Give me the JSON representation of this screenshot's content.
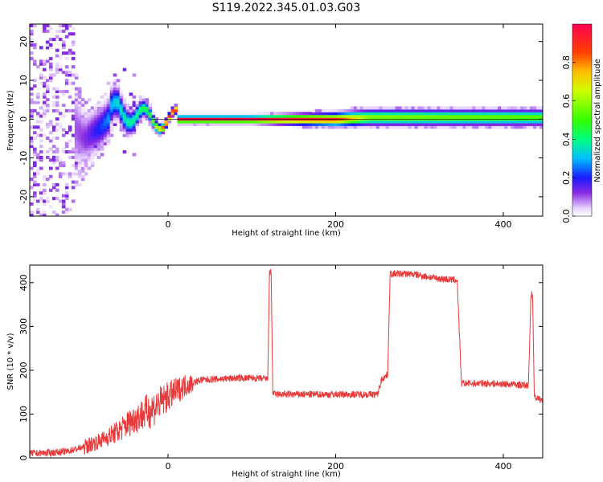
{
  "title": "S119.2022.345.01.03.G03",
  "chart_data": [
    {
      "type": "heatmap",
      "xlabel": "Height of straight line (km)",
      "ylabel": "Frequency (Hz)",
      "xlim": [
        -165,
        447
      ],
      "ylim": [
        -25,
        24.5
      ],
      "xticks": [
        0,
        200,
        400
      ],
      "yticks": [
        -20,
        -10,
        0,
        10,
        20
      ],
      "grid": false,
      "colorbar": {
        "label": "Normalized spectral amplitude",
        "range": [
          0,
          1
        ],
        "ticks": [
          "0.0",
          "0.2",
          "0.4",
          "0.6",
          "0.8"
        ],
        "colormap": "rainbow"
      },
      "ridge": [
        {
          "x": -165,
          "f": 0,
          "spread": 24,
          "amp": 0.05
        },
        {
          "x": -120,
          "f": 0,
          "spread": 22,
          "amp": 0.08
        },
        {
          "x": -100,
          "f": -5,
          "spread": 10,
          "amp": 0.12
        },
        {
          "x": -80,
          "f": -2,
          "spread": 8,
          "amp": 0.22
        },
        {
          "x": -60,
          "f": 3,
          "spread": 6,
          "amp": 0.35
        },
        {
          "x": -40,
          "f": 1,
          "spread": 4,
          "amp": 0.4
        },
        {
          "x": -20,
          "f": 0,
          "spread": 2.5,
          "amp": 0.5
        },
        {
          "x": 0,
          "f": 0,
          "spread": 1.5,
          "amp": 1.0
        },
        {
          "x": 100,
          "f": 0,
          "spread": 1.5,
          "amp": 1.0
        },
        {
          "x": 200,
          "f": 0,
          "spread": 2.5,
          "amp": 0.9
        },
        {
          "x": 240,
          "f": 0.5,
          "spread": 3,
          "amp": 0.6
        },
        {
          "x": 447,
          "f": 0.5,
          "spread": 3,
          "amp": 0.55
        }
      ]
    },
    {
      "type": "line",
      "xlabel": "Height of straight line (km)",
      "ylabel": "SNR (10 * v/v)",
      "xlim": [
        -165,
        447
      ],
      "ylim": [
        0,
        440
      ],
      "xticks": [
        0,
        200,
        400
      ],
      "yticks": [
        0,
        100,
        200,
        300,
        400
      ],
      "grid": false,
      "color": "#e83a3a",
      "series": [
        {
          "x": [
            -165,
            -140,
            -120,
            -100,
            -80,
            -60,
            -40,
            -20,
            0,
            20,
            40,
            60,
            80,
            100,
            119,
            121,
            123,
            125,
            127,
            140,
            180,
            220,
            250,
            255,
            262,
            265,
            290,
            320,
            345,
            350,
            380,
            410,
            430,
            433,
            435,
            437,
            447
          ],
          "y": [
            10,
            12,
            15,
            25,
            40,
            60,
            90,
            110,
            140,
            165,
            178,
            180,
            182,
            182,
            180,
            420,
            425,
            150,
            145,
            145,
            145,
            145,
            145,
            180,
            190,
            420,
            420,
            410,
            405,
            170,
            170,
            168,
            165,
            375,
            370,
            140,
            130
          ]
        }
      ]
    }
  ]
}
